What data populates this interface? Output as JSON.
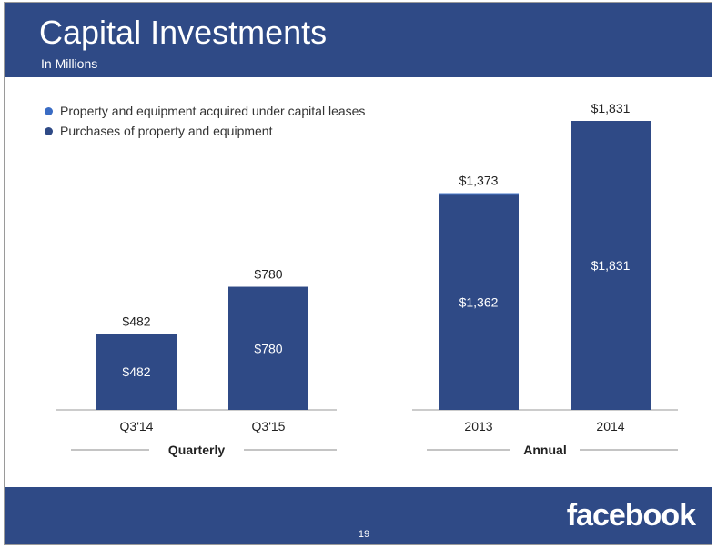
{
  "header": {
    "title": "Capital Investments",
    "subtitle": "In Millions"
  },
  "colors": {
    "header_bg": "#2f4a86",
    "bar": "#2f4a86",
    "capital_leases": "#3a6cc4",
    "purchases": "#2f4a86"
  },
  "chart_data": {
    "type": "bar",
    "stacked": true,
    "unit": "$ millions",
    "legend": [
      {
        "name": "Property and equipment acquired under capital leases",
        "color_key": "capital_leases"
      },
      {
        "name": "Purchases of property and equipment",
        "color_key": "purchases"
      }
    ],
    "groups": [
      {
        "label": "Quarterly",
        "categories": [
          "Q3'14",
          "Q3'15"
        ],
        "series": [
          {
            "name": "Purchases of property and equipment",
            "values": [
              482,
              780
            ],
            "labels": [
              "$482",
              "$780"
            ]
          },
          {
            "name": "Property and equipment acquired under capital leases",
            "values": [
              0,
              0
            ]
          }
        ],
        "totals": [
          482,
          780
        ],
        "total_labels": [
          "$482",
          "$780"
        ]
      },
      {
        "label": "Annual",
        "categories": [
          "2013",
          "2014"
        ],
        "series": [
          {
            "name": "Purchases of property and equipment",
            "values": [
              1362,
              1831
            ],
            "labels": [
              "$1,362",
              "$1,831"
            ]
          },
          {
            "name": "Property and equipment acquired under capital leases",
            "values": [
              11,
              0
            ]
          }
        ],
        "totals": [
          1373,
          1831
        ],
        "total_labels": [
          "$1,373",
          "$1,831"
        ]
      }
    ],
    "ylim": [
      0,
      2000
    ]
  },
  "footer": {
    "brand": "facebook",
    "page_number": "19"
  }
}
